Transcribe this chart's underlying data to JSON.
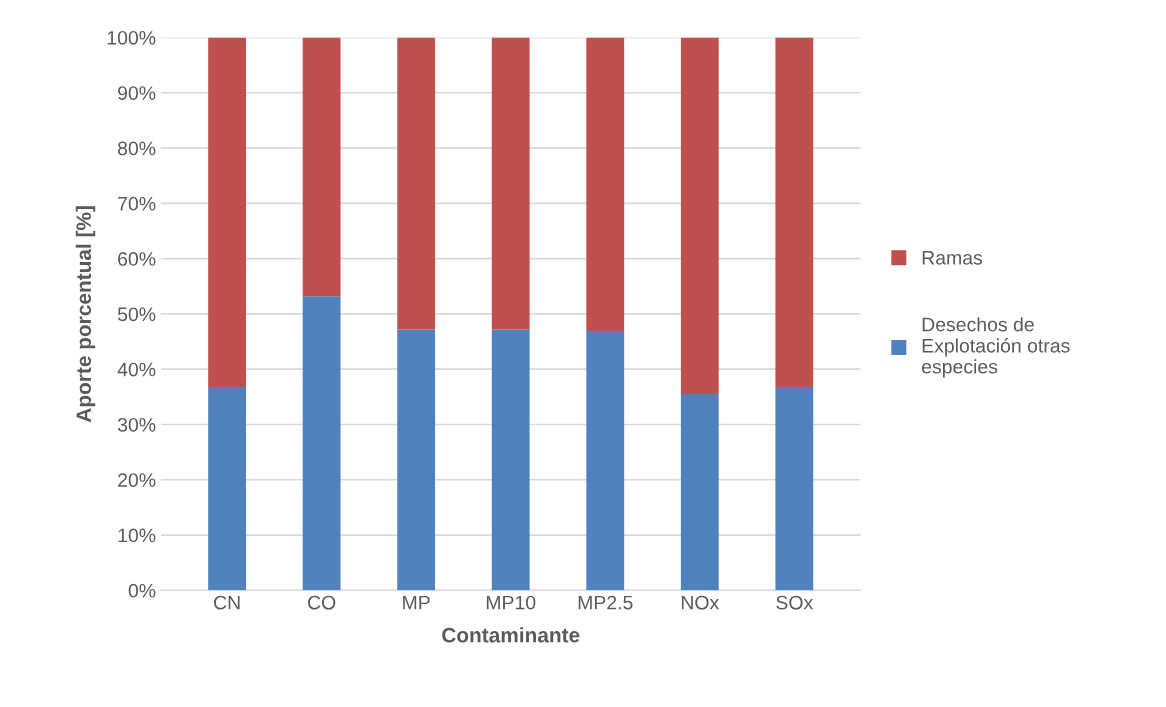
{
  "chart_data": {
    "type": "bar",
    "stacked": true,
    "xlabel": "Contaminante",
    "ylabel": "Aporte porcentual [%]",
    "categories": [
      "CN",
      "CO",
      "MP",
      "MP10",
      "MP2.5",
      "NOx",
      "SOx"
    ],
    "series": [
      {
        "name": "Desechos de Explotación otras especies",
        "color": "#4f81bd",
        "values": [
          36.8,
          53.2,
          47.2,
          47.2,
          46.9,
          35.5,
          36.8
        ]
      },
      {
        "name": "Ramas",
        "color": "#c0504d",
        "values": [
          63.2,
          46.8,
          52.8,
          52.8,
          53.1,
          64.5,
          63.2
        ]
      }
    ],
    "ylim": [
      0,
      100
    ],
    "yticks": [
      {
        "value": 0,
        "label": "0%"
      },
      {
        "value": 10,
        "label": "10%"
      },
      {
        "value": 20,
        "label": "20%"
      },
      {
        "value": 30,
        "label": "30%"
      },
      {
        "value": 40,
        "label": "40%"
      },
      {
        "value": 50,
        "label": "50%"
      },
      {
        "value": 60,
        "label": "60%"
      },
      {
        "value": 70,
        "label": "70%"
      },
      {
        "value": 80,
        "label": "80%"
      },
      {
        "value": 90,
        "label": "90%"
      },
      {
        "value": 100,
        "label": "100%"
      }
    ],
    "grid": "y",
    "legend": "right"
  }
}
